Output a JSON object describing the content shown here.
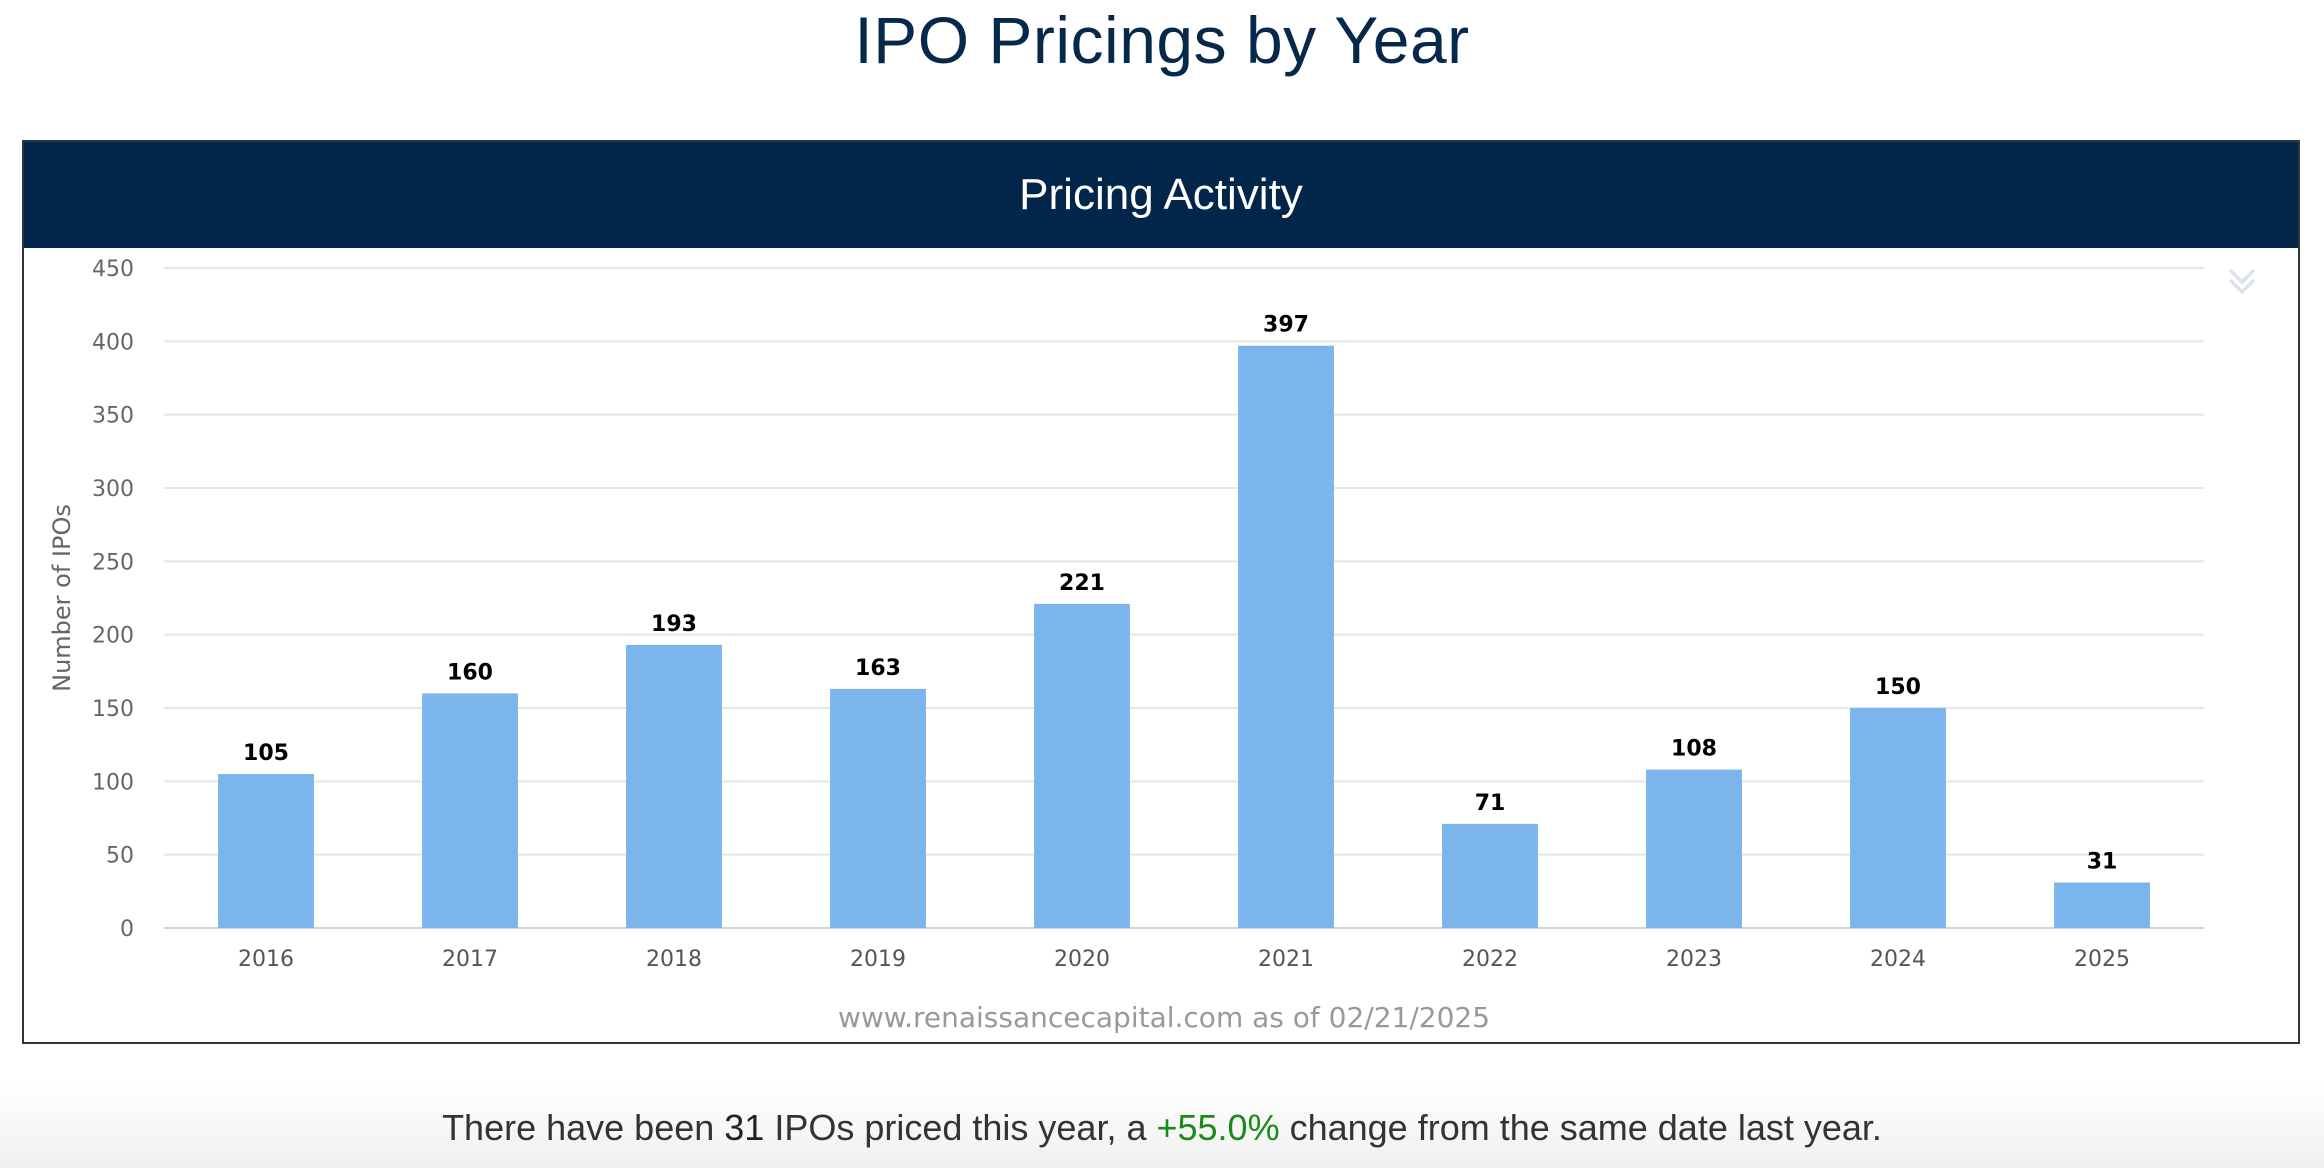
{
  "page": {
    "title": "IPO Pricings by Year"
  },
  "panel": {
    "header": "Pricing Activity",
    "menu_icon": "double-chevron-down-icon",
    "credit": "www.renaissancecapital.com as of 02/21/2025"
  },
  "summary": {
    "prefix": "There have been ",
    "count": "31",
    "middle": " IPOs priced this year, a ",
    "change": "+55.0%",
    "suffix": " change from the same date last year."
  },
  "colors": {
    "bar": "#7cb5ec",
    "header_bg": "#022649",
    "title": "#06284a",
    "positive": "#1a8a1a"
  },
  "chart_data": {
    "type": "bar",
    "title": "Pricing Activity",
    "xlabel": "",
    "ylabel": "Number of IPOs",
    "categories": [
      "2016",
      "2017",
      "2018",
      "2019",
      "2020",
      "2021",
      "2022",
      "2023",
      "2024",
      "2025"
    ],
    "values": [
      105,
      160,
      193,
      163,
      221,
      397,
      71,
      108,
      150,
      31
    ],
    "ylim": [
      0,
      450
    ],
    "yticks": [
      0,
      50,
      100,
      150,
      200,
      250,
      300,
      350,
      400,
      450
    ],
    "grid": true,
    "data_labels": true,
    "legend": "none"
  }
}
